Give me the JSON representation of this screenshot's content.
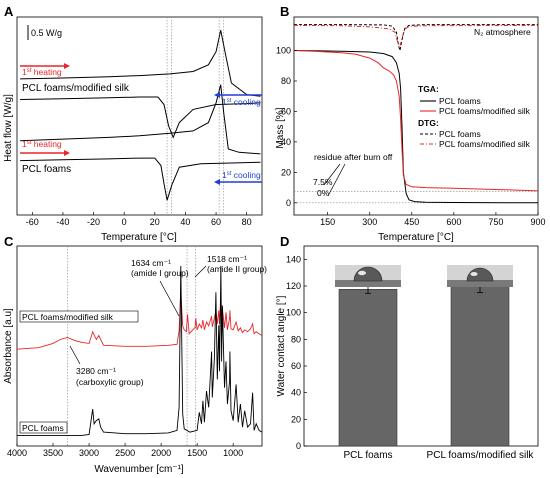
{
  "chart_data": [
    {
      "panel": "A",
      "type": "line",
      "xlabel": "Temperature [°C]",
      "ylabel": "Heat flow [W/g]",
      "xlim": [
        -70,
        90
      ],
      "xticks": [
        -60,
        -40,
        -20,
        0,
        20,
        40,
        60,
        80
      ],
      "scale_bar": "0.5 W/g",
      "guide_lines_at": [
        28,
        31,
        62,
        65
      ],
      "curve_labels": [
        "PCL foams/modified silk",
        "PCL foams"
      ],
      "arrow_labels": {
        "heating": "1st heating",
        "cooling": "1st cooling",
        "heating_color": "#e8262a",
        "cooling_color": "#1f3fd8"
      },
      "series": [
        {
          "name": "PCL foams/modified silk – 1st heating",
          "x": [
            -68,
            -40,
            -10,
            10,
            30,
            45,
            55,
            60,
            63,
            66,
            70,
            80,
            89
          ],
          "y": [
            8.25,
            8.3,
            8.38,
            8.45,
            8.55,
            8.7,
            9.1,
            9.9,
            11.2,
            9.8,
            8.0,
            7.3,
            7.2
          ]
        },
        {
          "name": "PCL foams/modified silk – 1st cooling",
          "x": [
            -68,
            -40,
            -10,
            10,
            22,
            26,
            29,
            32,
            36,
            45,
            60,
            80,
            89
          ],
          "y": [
            7.0,
            7.05,
            7.1,
            7.15,
            7.15,
            6.7,
            5.4,
            4.7,
            5.6,
            6.4,
            6.7,
            6.75,
            6.8
          ]
        },
        {
          "name": "PCL foams – 1st heating",
          "x": [
            -68,
            -40,
            -10,
            10,
            30,
            45,
            55,
            60,
            63,
            65,
            68,
            75,
            89
          ],
          "y": [
            4.5,
            4.6,
            4.7,
            4.8,
            4.95,
            5.1,
            5.6,
            6.8,
            7.9,
            6.2,
            4.0,
            3.8,
            3.7
          ]
        },
        {
          "name": "PCL foams – 1st cooling",
          "x": [
            -68,
            -40,
            -10,
            10,
            20,
            24,
            26,
            28,
            31,
            36,
            50,
            70,
            89
          ],
          "y": [
            3.3,
            3.35,
            3.4,
            3.45,
            3.45,
            3.0,
            1.9,
            0.9,
            1.8,
            2.9,
            3.1,
            3.15,
            3.2
          ]
        }
      ]
    },
    {
      "panel": "B",
      "type": "line",
      "xlabel": "Temperature [°C]",
      "ylabel": "Mass [%]",
      "xlim": [
        30,
        900
      ],
      "ylim": [
        -8,
        122
      ],
      "xticks": [
        150,
        300,
        450,
        600,
        750,
        900
      ],
      "yticks": [
        0,
        20,
        40,
        60,
        80,
        100
      ],
      "atmosphere": "N₂ atmosphere",
      "legend": {
        "tga_title": "TGA:",
        "dtg_title": "DTG:",
        "items": [
          "PCL foams",
          "PCL foams/modified silk"
        ]
      },
      "annotations": {
        "residue": "residue after burn off",
        "level_1": "7.5%",
        "level_0": "0%"
      },
      "residue_levels": [
        7.5,
        0
      ],
      "series": [
        {
          "name": "PCL foams",
          "group": "TGA",
          "x": [
            30,
            100,
            200,
            300,
            350,
            380,
            395,
            405,
            410,
            415,
            420,
            430,
            440,
            460,
            500,
            600,
            900
          ],
          "y": [
            100,
            99.8,
            99.5,
            99,
            98,
            96,
            92,
            85,
            75,
            50,
            20,
            6,
            2,
            0.8,
            0.4,
            0.2,
            0
          ]
        },
        {
          "name": "PCL foams/modified silk",
          "group": "TGA",
          "x": [
            30,
            100,
            200,
            250,
            300,
            330,
            350,
            370,
            385,
            395,
            405,
            410,
            415,
            420,
            430,
            450,
            500,
            600,
            700,
            800,
            900
          ],
          "y": [
            100,
            99.5,
            98.5,
            97.5,
            95,
            92,
            88.5,
            86.5,
            84,
            80,
            70,
            55,
            35,
            18,
            12,
            10.5,
            10,
            9.5,
            9,
            8.5,
            7.8
          ]
        },
        {
          "name": "PCL foams",
          "group": "DTG",
          "x": [
            30,
            200,
            350,
            380,
            395,
            403,
            408,
            415,
            425,
            440,
            500,
            900
          ],
          "y": [
            117,
            117,
            116.8,
            116,
            112,
            103,
            100,
            107,
            114.5,
            116.5,
            117,
            117
          ]
        },
        {
          "name": "PCL foams/modified silk",
          "group": "DTG",
          "x": [
            30,
            200,
            300,
            340,
            370,
            390,
            400,
            408,
            415,
            425,
            440,
            500,
            900
          ],
          "y": [
            116.5,
            116.3,
            115.5,
            114.8,
            114.2,
            112,
            105,
            103,
            108,
            114,
            115.8,
            116.3,
            116.5
          ]
        }
      ]
    },
    {
      "panel": "C",
      "type": "line",
      "xlabel": "Wavenumber [cm⁻¹]",
      "ylabel": "Absorbance [a.u]",
      "xlim": [
        4000,
        600
      ],
      "xticks": [
        4000,
        3500,
        3000,
        2500,
        2000,
        1500,
        1000
      ],
      "guide_lines_at": [
        3300,
        1640,
        1520
      ],
      "curve_labels": [
        "PCL foams/modified silk",
        "PCL foams"
      ],
      "annotations": {
        "peak_1634": [
          "1634 cm⁻¹",
          "(amide I group)"
        ],
        "peak_1518": [
          "1518 cm⁻¹",
          "(amide II group)"
        ],
        "peak_3280": [
          "3280 cm⁻¹",
          "(carboxylic group)"
        ]
      },
      "series": [
        {
          "name": "PCL foams/modified silk",
          "color": "#e8262a",
          "x": [
            4000,
            3700,
            3500,
            3400,
            3300,
            3200,
            3100,
            3000,
            2950,
            2900,
            2865,
            2800,
            2500,
            2200,
            1900,
            1780,
            1750,
            1727,
            1700,
            1680,
            1650,
            1634,
            1610,
            1560,
            1530,
            1518,
            1500,
            1470,
            1440,
            1420,
            1400,
            1370,
            1340,
            1300,
            1290,
            1260,
            1240,
            1220,
            1200,
            1190,
            1170,
            1160,
            1150,
            1120,
            1100,
            1080,
            1050,
            1045,
            1030,
            1000,
            960,
            930,
            900,
            870,
            840,
            800,
            760,
            731,
            710,
            680,
            640,
            600
          ],
          "y": [
            0.6,
            0.75,
            1.2,
            1.6,
            1.8,
            1.5,
            1.3,
            1.2,
            2.4,
            1.6,
            2.0,
            1.0,
            0.9,
            0.9,
            1.0,
            1.1,
            2.5,
            6.6,
            3.0,
            2.6,
            2.4,
            4.2,
            2.2,
            2.6,
            2.8,
            3.8,
            2.6,
            3.2,
            2.8,
            3.6,
            2.6,
            3.4,
            3.0,
            4.0,
            2.9,
            3.8,
            4.6,
            3.2,
            4.6,
            3.2,
            6.0,
            4.0,
            4.8,
            2.8,
            4.4,
            2.6,
            3.8,
            4.6,
            2.7,
            2.6,
            3.4,
            2.5,
            2.8,
            2.3,
            2.6,
            2.4,
            2.7,
            3.2,
            2.2,
            2.4,
            2.2,
            2.0
          ]
        },
        {
          "name": "PCL foams",
          "color": "#000000",
          "x": [
            4000,
            3700,
            3500,
            3300,
            3100,
            3000,
            2950,
            2930,
            2900,
            2865,
            2840,
            2800,
            2500,
            2200,
            1900,
            1780,
            1750,
            1727,
            1700,
            1680,
            1600,
            1500,
            1470,
            1440,
            1420,
            1400,
            1370,
            1340,
            1300,
            1290,
            1260,
            1240,
            1220,
            1200,
            1190,
            1170,
            1160,
            1150,
            1120,
            1100,
            1080,
            1050,
            1045,
            1030,
            1000,
            960,
            930,
            900,
            870,
            840,
            800,
            760,
            731,
            710,
            680,
            640,
            600
          ],
          "y": [
            0.1,
            0.1,
            0.1,
            0.1,
            0.1,
            0.15,
            1.7,
            0.8,
            1.0,
            1.1,
            0.6,
            0.3,
            0.2,
            0.2,
            0.25,
            0.4,
            1.8,
            10.4,
            1.4,
            0.5,
            0.3,
            0.4,
            1.5,
            0.8,
            2.2,
            0.9,
            2.8,
            1.8,
            5.2,
            2.4,
            4.8,
            8.8,
            3.5,
            6.8,
            4.0,
            10.4,
            4.6,
            8.0,
            3.0,
            4.6,
            2.0,
            3.4,
            5.2,
            1.6,
            1.0,
            3.2,
            0.9,
            2.0,
            0.6,
            1.6,
            0.6,
            0.8,
            2.7,
            0.4,
            0.8,
            0.4,
            0.3
          ]
        }
      ]
    },
    {
      "panel": "D",
      "type": "bar",
      "ylabel": "Water contact angle [°]",
      "ylim": [
        0,
        150
      ],
      "yticks": [
        0,
        20,
        40,
        60,
        80,
        100,
        120,
        140
      ],
      "categories": [
        "PCL foams",
        "PCL foams/modified silk"
      ],
      "values": [
        117.5,
        120
      ],
      "errors": [
        3,
        5
      ],
      "bar_color": "#666666"
    }
  ]
}
